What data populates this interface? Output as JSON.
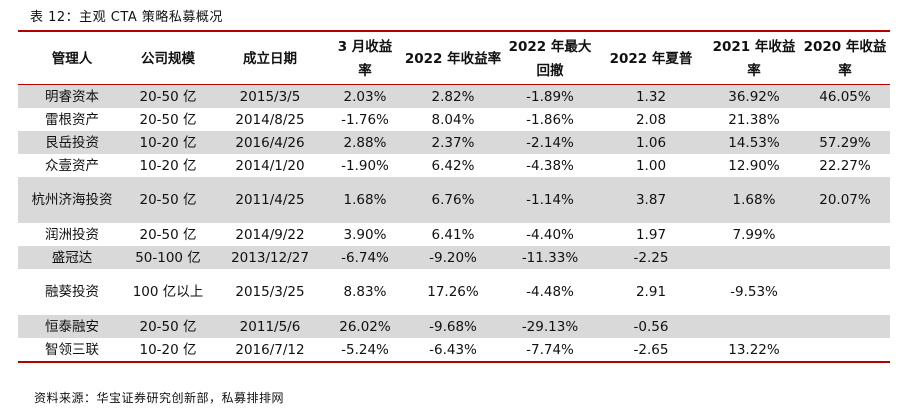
{
  "title": "表 12：主观 CTA 策略私募概况",
  "headers": [
    "管理人",
    "公司规模",
    "成立日期",
    "3 月收益率",
    "2022 年收益率",
    "2022 年最大回撤",
    "2022 年夏普",
    "2021 年收益率",
    "2020 年收益率"
  ],
  "rows": [
    [
      "明睿资本",
      "20-50 亿",
      "2015/3/5",
      "2.03%",
      "2.82%",
      "-1.89%",
      "1.32",
      "36.92%",
      "46.05%"
    ],
    [
      "雷根资产",
      "20-50 亿",
      "2014/8/25",
      "-1.76%",
      "8.04%",
      "-1.86%",
      "2.08",
      "21.38%",
      ""
    ],
    [
      "艮岳投资",
      "10-20 亿",
      "2016/4/26",
      "2.88%",
      "2.37%",
      "-2.14%",
      "1.06",
      "14.53%",
      "57.29%"
    ],
    [
      "众壹资产",
      "10-20 亿",
      "2014/1/20",
      "-1.90%",
      "6.42%",
      "-4.38%",
      "1.00",
      "12.90%",
      "22.27%"
    ],
    [
      "杭州济海投资",
      "20-50 亿",
      "2011/4/25",
      "1.68%",
      "6.76%",
      "-1.14%",
      "3.87",
      "1.68%",
      "20.07%"
    ],
    [
      "润洲投资",
      "20-50 亿",
      "2014/9/22",
      "3.90%",
      "6.41%",
      "-4.40%",
      "1.97",
      "7.99%",
      ""
    ],
    [
      "盛冠达",
      "50-100 亿",
      "2013/12/27",
      "-6.74%",
      "-9.20%",
      "-11.33%",
      "-2.25",
      "",
      ""
    ],
    [
      "融葵投资",
      "100 亿以上",
      "2015/3/25",
      "8.83%",
      "17.26%",
      "-4.48%",
      "2.91",
      "-9.53%",
      ""
    ],
    [
      "恒泰融安",
      "20-50 亿",
      "2011/5/6",
      "26.02%",
      "-9.68%",
      "-29.13%",
      "-0.56",
      "",
      ""
    ],
    [
      "智领三联",
      "10-20 亿",
      "2016/7/12",
      "-5.24%",
      "-6.43%",
      "-7.74%",
      "-2.65",
      "13.22%",
      ""
    ]
  ],
  "source": "资料来源：华宝证券研究创新部，私募排排网",
  "colors": {
    "rule": "#b40000",
    "shade": "#d9d9d9"
  }
}
